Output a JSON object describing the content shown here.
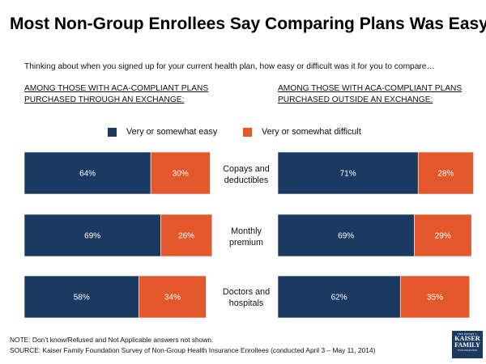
{
  "title": "Most Non-Group Enrollees Say Comparing Plans Was Easy",
  "subtitle": "Thinking about when you signed up for your current health plan, how easy or difficult was it for you to compare…",
  "colors": {
    "easy": "#1b3a61",
    "difficult": "#e2582a"
  },
  "footnotes": {
    "note": "NOTE: Don’t know/Refused and Not Applicable answers not shown.",
    "source": "SOURCE: Kaiser Family Foundation Survey of Non-Group Health Insurance Enrollees (conducted April 3 – May 11, 2014)"
  },
  "logo": {
    "line1": "THE HENRY J.",
    "line2": "KAISER",
    "line3": "FAMILY",
    "line4": "FOUNDATION"
  },
  "chart_data": {
    "type": "bar",
    "orientation": "horizontal",
    "stacked": true,
    "title": "Most Non-Group Enrollees Say Comparing Plans Was Easy",
    "categories": [
      "Copays and deductibles",
      "Monthly premium",
      "Doctors and hospitals"
    ],
    "category_lines": [
      [
        "Copays and",
        "deductibles"
      ],
      [
        "Monthly",
        "premium"
      ],
      [
        "Doctors and",
        "hospitals"
      ]
    ],
    "legend": [
      "Very or somewhat easy",
      "Very or somewhat difficult"
    ],
    "value_suffix": "%",
    "xlim": [
      0,
      100
    ],
    "panels": [
      {
        "heading": [
          "AMONG THOSE WITH ACA-COMPLIANT PLANS",
          "PURCHASED THROUGH AN EXCHANGE:"
        ],
        "series": [
          {
            "name": "Very or somewhat easy",
            "values": [
              64,
              69,
              58
            ]
          },
          {
            "name": "Very or somewhat difficult",
            "values": [
              30,
              26,
              34
            ]
          }
        ]
      },
      {
        "heading": [
          "AMONG THOSE WITH ACA-COMPLIANT PLANS",
          "PURCHASED OUTSIDE AN EXCHANGE:"
        ],
        "series": [
          {
            "name": "Very or somewhat easy",
            "values": [
              71,
              69,
              62
            ]
          },
          {
            "name": "Very or somewhat difficult",
            "values": [
              28,
              29,
              35
            ]
          }
        ]
      }
    ]
  }
}
